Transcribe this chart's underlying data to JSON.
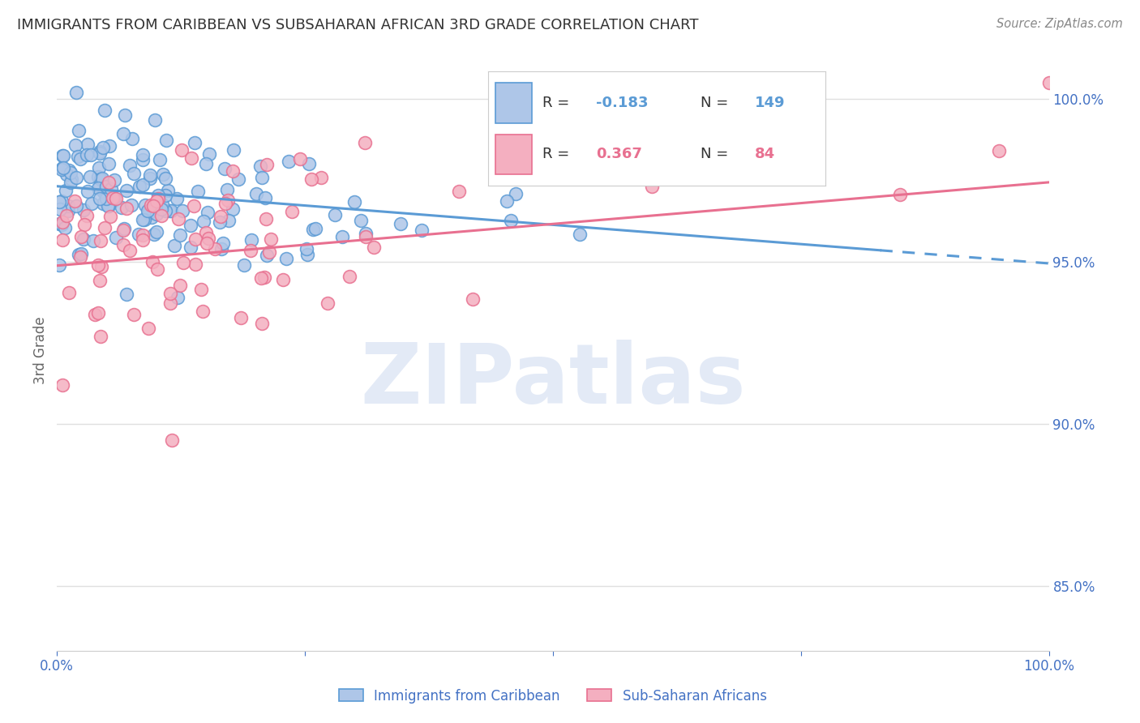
{
  "title": "IMMIGRANTS FROM CARIBBEAN VS SUBSAHARAN AFRICAN 3RD GRADE CORRELATION CHART",
  "source": "Source: ZipAtlas.com",
  "ylabel": "3rd Grade",
  "xlim": [
    0.0,
    100.0
  ],
  "ylim": [
    83.0,
    101.5
  ],
  "watermark": "ZIPatlas",
  "blue_color": "#5b9bd5",
  "pink_color": "#e87090",
  "blue_fill": "#aec6e8",
  "pink_fill": "#f4afc0",
  "grid_color": "#e0e0e0",
  "title_color": "#333333",
  "source_color": "#888888",
  "axis_color": "#4472c4",
  "background_color": "#ffffff",
  "ytick_vals": [
    85.0,
    90.0,
    95.0,
    100.0
  ],
  "R_blue": -0.183,
  "N_blue": 149,
  "R_pink": 0.367,
  "N_pink": 84
}
